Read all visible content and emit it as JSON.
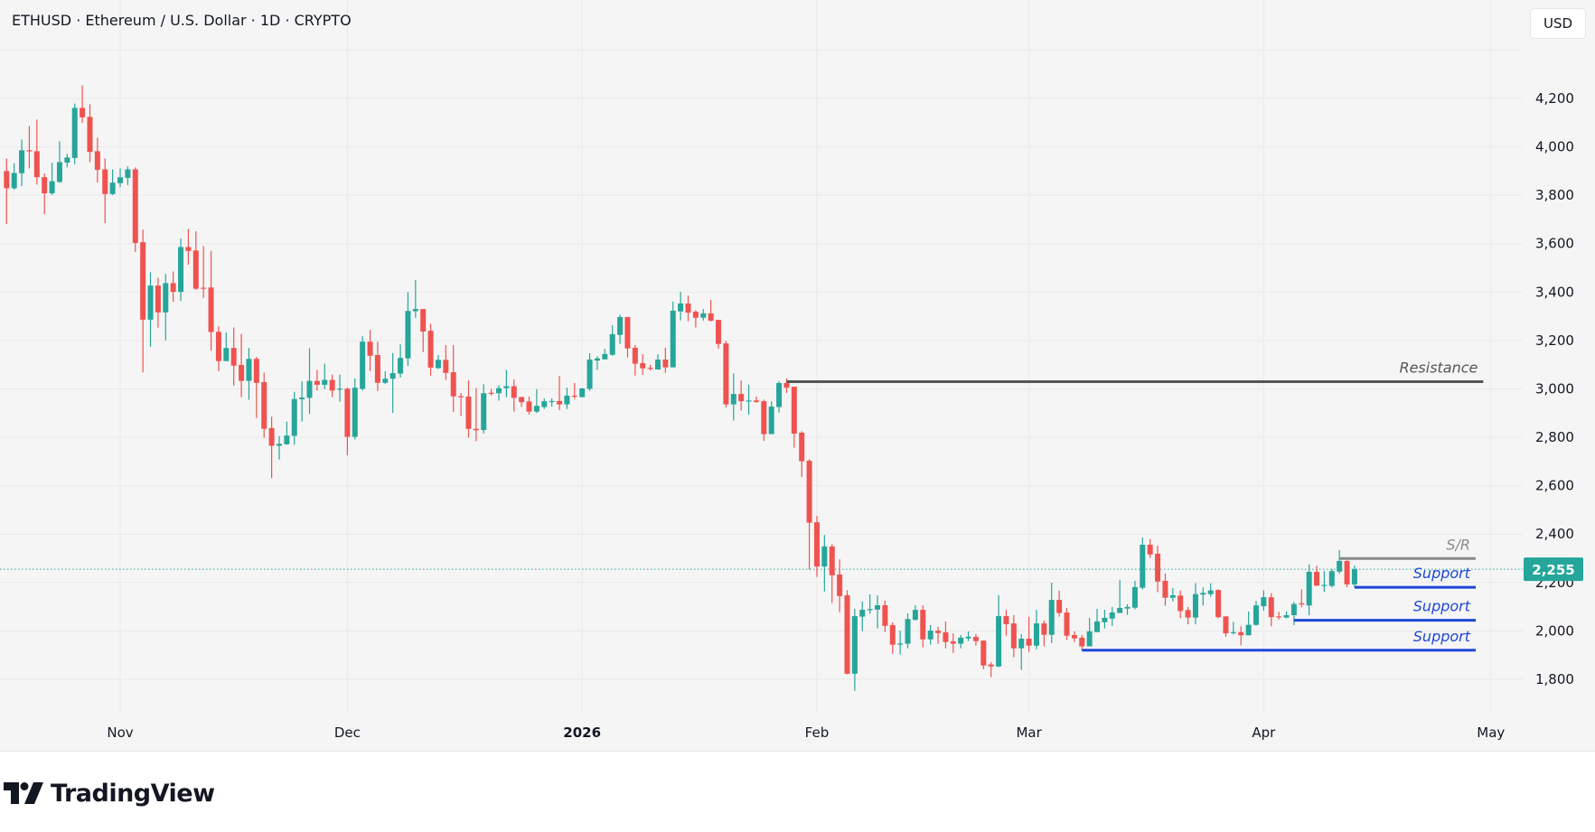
{
  "header": {
    "title": "ETHUSD · Ethereum / U.S. Dollar · 1D · CRYPTO",
    "currency_button": "USD"
  },
  "branding": {
    "logo_text": "TradingView"
  },
  "colors": {
    "up": "#26a69a",
    "down": "#ef5350",
    "background": "#f5f5f5",
    "grid": "#e9e9e9",
    "support": "#1f47d6",
    "resistance": "#555555",
    "sr": "#8a8a8a",
    "last_price": "#26a69a"
  },
  "chart_data": {
    "type": "candlestick",
    "symbol": "ETHUSD",
    "interval": "1D",
    "ylim": [
      1600,
      4400
    ],
    "grid": true,
    "y_ticks": [
      {
        "value": 4200,
        "label": "4,200"
      },
      {
        "value": 4000,
        "label": "4,000"
      },
      {
        "value": 3800,
        "label": "3,800"
      },
      {
        "value": 3600,
        "label": "3,600"
      },
      {
        "value": 3400,
        "label": "3,400"
      },
      {
        "value": 3200,
        "label": "3,200"
      },
      {
        "value": 3000,
        "label": "3,000"
      },
      {
        "value": 2800,
        "label": "2,800"
      },
      {
        "value": 2600,
        "label": "2,600"
      },
      {
        "value": 2400,
        "label": "2,400"
      },
      {
        "value": 2200,
        "label": "2,200"
      },
      {
        "value": 2000,
        "label": "2,000"
      },
      {
        "value": 1800,
        "label": "1,800"
      }
    ],
    "x_ticks": [
      {
        "date": "2025-11-01",
        "label": "Nov",
        "bold": false
      },
      {
        "date": "2025-12-01",
        "label": "Dec",
        "bold": false
      },
      {
        "date": "2026-01-01",
        "label": "2026",
        "bold": true
      },
      {
        "date": "2026-02-01",
        "label": "Feb",
        "bold": false
      },
      {
        "date": "2026-03-01",
        "label": "Mar",
        "bold": false
      },
      {
        "date": "2026-04-01",
        "label": "Apr",
        "bold": false
      },
      {
        "date": "2026-05-01",
        "label": "May",
        "bold": false
      }
    ],
    "last_price": {
      "value": 2255,
      "label": "2,255"
    },
    "drawings": [
      {
        "label": "Resistance",
        "price": 3030,
        "from": "2026-01-28",
        "to": "2026-04-30",
        "kind": "resistance"
      },
      {
        "label": "S/R",
        "price": 2299,
        "from": "2026-04-11",
        "to": "2026-04-29",
        "kind": "sr"
      },
      {
        "label": "Support",
        "price": 2180,
        "from": "2026-04-13",
        "to": "2026-04-29",
        "kind": "support"
      },
      {
        "label": "Support",
        "price": 2044,
        "from": "2026-04-05",
        "to": "2026-04-29",
        "kind": "support"
      },
      {
        "label": "Support",
        "price": 1920,
        "from": "2026-03-08",
        "to": "2026-04-29",
        "kind": "support"
      }
    ],
    "candle_fields": [
      "date",
      "open",
      "high",
      "low",
      "close"
    ],
    "candles": [
      [
        "2025-10-17",
        3900,
        3952,
        3681,
        3829
      ],
      [
        "2025-10-18",
        3829,
        3932,
        3823,
        3892
      ],
      [
        "2025-10-19",
        3891,
        4030,
        3838,
        3986
      ],
      [
        "2025-10-20",
        3986,
        4086,
        3911,
        3984
      ],
      [
        "2025-10-21",
        3982,
        4113,
        3844,
        3875
      ],
      [
        "2025-10-22",
        3875,
        3890,
        3722,
        3808
      ],
      [
        "2025-10-23",
        3808,
        3934,
        3801,
        3858
      ],
      [
        "2025-10-24",
        3855,
        4023,
        3852,
        3937
      ],
      [
        "2025-10-25",
        3935,
        3971,
        3915,
        3956
      ],
      [
        "2025-10-26",
        3954,
        4179,
        3928,
        4161
      ],
      [
        "2025-10-27",
        4161,
        4254,
        4099,
        4122
      ],
      [
        "2025-10-28",
        4124,
        4176,
        3937,
        3979
      ],
      [
        "2025-10-29",
        3982,
        4038,
        3853,
        3905
      ],
      [
        "2025-10-30",
        3907,
        3952,
        3685,
        3805
      ],
      [
        "2025-10-31",
        3805,
        3907,
        3801,
        3852
      ],
      [
        "2025-11-01",
        3850,
        3911,
        3833,
        3874
      ],
      [
        "2025-11-02",
        3872,
        3919,
        3842,
        3907
      ],
      [
        "2025-11-03",
        3907,
        3915,
        3566,
        3603
      ],
      [
        "2025-11-04",
        3606,
        3658,
        3068,
        3286
      ],
      [
        "2025-11-05",
        3286,
        3482,
        3174,
        3427
      ],
      [
        "2025-11-06",
        3427,
        3459,
        3253,
        3316
      ],
      [
        "2025-11-07",
        3316,
        3475,
        3200,
        3437
      ],
      [
        "2025-11-08",
        3437,
        3485,
        3360,
        3401
      ],
      [
        "2025-11-09",
        3401,
        3621,
        3363,
        3586
      ],
      [
        "2025-11-10",
        3586,
        3661,
        3513,
        3570
      ],
      [
        "2025-11-11",
        3572,
        3651,
        3409,
        3414
      ],
      [
        "2025-11-12",
        3418,
        3590,
        3376,
        3414
      ],
      [
        "2025-11-13",
        3419,
        3570,
        3158,
        3235
      ],
      [
        "2025-11-14",
        3236,
        3259,
        3073,
        3115
      ],
      [
        "2025-11-15",
        3115,
        3233,
        3115,
        3169
      ],
      [
        "2025-11-16",
        3169,
        3254,
        3013,
        3096
      ],
      [
        "2025-11-17",
        3099,
        3227,
        2965,
        3033
      ],
      [
        "2025-11-18",
        3033,
        3169,
        2955,
        3124
      ],
      [
        "2025-11-19",
        3124,
        3132,
        2880,
        3025
      ],
      [
        "2025-11-20",
        3028,
        3067,
        2798,
        2835
      ],
      [
        "2025-11-21",
        2838,
        2885,
        2631,
        2765
      ],
      [
        "2025-11-22",
        2765,
        2805,
        2708,
        2773
      ],
      [
        "2025-11-23",
        2771,
        2865,
        2769,
        2807
      ],
      [
        "2025-11-24",
        2806,
        2988,
        2769,
        2958
      ],
      [
        "2025-11-25",
        2957,
        3031,
        2865,
        2964
      ],
      [
        "2025-11-26",
        2963,
        3168,
        2896,
        3033
      ],
      [
        "2025-11-27",
        3033,
        3078,
        2993,
        3017
      ],
      [
        "2025-11-28",
        3017,
        3104,
        2999,
        3037
      ],
      [
        "2025-11-29",
        3037,
        3059,
        2966,
        2993
      ],
      [
        "2025-11-30",
        2999,
        3059,
        2947,
        3001
      ],
      [
        "2025-12-01",
        3001,
        3005,
        2726,
        2802
      ],
      [
        "2025-12-02",
        2802,
        3043,
        2791,
        3005
      ],
      [
        "2025-12-03",
        3000,
        3218,
        2993,
        3195
      ],
      [
        "2025-12-04",
        3195,
        3244,
        3074,
        3137
      ],
      [
        "2025-12-05",
        3140,
        3195,
        2991,
        3025
      ],
      [
        "2025-12-06",
        3025,
        3073,
        3020,
        3042
      ],
      [
        "2025-12-07",
        3042,
        3148,
        2901,
        3065
      ],
      [
        "2025-12-08",
        3063,
        3184,
        3047,
        3128
      ],
      [
        "2025-12-09",
        3126,
        3400,
        3095,
        3322
      ],
      [
        "2025-12-10",
        3321,
        3450,
        3294,
        3330
      ],
      [
        "2025-12-11",
        3330,
        3330,
        3152,
        3237
      ],
      [
        "2025-12-12",
        3240,
        3269,
        3055,
        3088
      ],
      [
        "2025-12-13",
        3086,
        3139,
        3082,
        3120
      ],
      [
        "2025-12-14",
        3120,
        3181,
        3037,
        3066
      ],
      [
        "2025-12-15",
        3069,
        3181,
        2905,
        2969
      ],
      [
        "2025-12-16",
        2970,
        2983,
        2888,
        2968
      ],
      [
        "2025-12-17",
        2968,
        3035,
        2799,
        2835
      ],
      [
        "2025-12-18",
        2835,
        3003,
        2784,
        2829
      ],
      [
        "2025-12-19",
        2830,
        3019,
        2816,
        2982
      ],
      [
        "2025-12-20",
        2984,
        3000,
        2973,
        2982
      ],
      [
        "2025-12-21",
        2982,
        3015,
        2951,
        3003
      ],
      [
        "2025-12-22",
        3003,
        3078,
        2966,
        3011
      ],
      [
        "2025-12-23",
        3011,
        3039,
        2906,
        2963
      ],
      [
        "2025-12-24",
        2966,
        2968,
        2926,
        2945
      ],
      [
        "2025-12-25",
        2948,
        2968,
        2894,
        2906
      ],
      [
        "2025-12-26",
        2906,
        2999,
        2900,
        2930
      ],
      [
        "2025-12-27",
        2925,
        2961,
        2917,
        2949
      ],
      [
        "2025-12-28",
        2949,
        2961,
        2927,
        2950
      ],
      [
        "2025-12-29",
        2950,
        3054,
        2912,
        2936
      ],
      [
        "2025-12-30",
        2936,
        3005,
        2917,
        2972
      ],
      [
        "2025-12-31",
        2972,
        3024,
        2958,
        2970
      ],
      [
        "2026-01-01",
        2966,
        3004,
        2965,
        3002
      ],
      [
        "2026-01-02",
        3000,
        3147,
        2992,
        3121
      ],
      [
        "2026-01-03",
        3117,
        3135,
        3078,
        3126
      ],
      [
        "2026-01-04",
        3122,
        3166,
        3122,
        3144
      ],
      [
        "2026-01-05",
        3141,
        3263,
        3137,
        3226
      ],
      [
        "2026-01-06",
        3223,
        3307,
        3186,
        3297
      ],
      [
        "2026-01-07",
        3297,
        3297,
        3130,
        3167
      ],
      [
        "2026-01-08",
        3170,
        3181,
        3055,
        3104
      ],
      [
        "2026-01-09",
        3106,
        3143,
        3058,
        3085
      ],
      [
        "2026-01-10",
        3087,
        3099,
        3076,
        3086
      ],
      [
        "2026-01-11",
        3080,
        3143,
        3080,
        3121
      ],
      [
        "2026-01-12",
        3121,
        3170,
        3066,
        3089
      ],
      [
        "2026-01-13",
        3089,
        3361,
        3089,
        3323
      ],
      [
        "2026-01-14",
        3320,
        3401,
        3283,
        3353
      ],
      [
        "2026-01-15",
        3353,
        3386,
        3279,
        3315
      ],
      [
        "2026-01-16",
        3319,
        3325,
        3253,
        3294
      ],
      [
        "2026-01-17",
        3294,
        3330,
        3282,
        3312
      ],
      [
        "2026-01-18",
        3312,
        3368,
        3278,
        3282
      ],
      [
        "2026-01-19",
        3285,
        3285,
        3166,
        3186
      ],
      [
        "2026-01-20",
        3188,
        3198,
        2923,
        2936
      ],
      [
        "2026-01-21",
        2936,
        3064,
        2869,
        2979
      ],
      [
        "2026-01-22",
        2979,
        3035,
        2910,
        2949
      ],
      [
        "2026-01-23",
        2949,
        3017,
        2893,
        2952
      ],
      [
        "2026-01-24",
        2952,
        2968,
        2942,
        2946
      ],
      [
        "2026-01-25",
        2949,
        2956,
        2785,
        2813
      ],
      [
        "2026-01-26",
        2813,
        2949,
        2813,
        2927
      ],
      [
        "2026-01-27",
        2925,
        3032,
        2902,
        3024
      ],
      [
        "2026-01-28",
        3024,
        3043,
        2983,
        3005
      ],
      [
        "2026-01-29",
        3009,
        3009,
        2757,
        2815
      ],
      [
        "2026-01-30",
        2819,
        2825,
        2636,
        2701
      ],
      [
        "2026-01-31",
        2703,
        2709,
        2253,
        2447
      ],
      [
        "2026-02-01",
        2449,
        2475,
        2223,
        2266
      ],
      [
        "2026-02-02",
        2266,
        2396,
        2163,
        2349
      ],
      [
        "2026-02-03",
        2349,
        2358,
        2115,
        2230
      ],
      [
        "2026-02-04",
        2233,
        2296,
        2077,
        2144
      ],
      [
        "2026-02-05",
        2147,
        2168,
        1820,
        1823
      ],
      [
        "2026-02-06",
        1823,
        2091,
        1752,
        2061
      ],
      [
        "2026-02-07",
        2059,
        2121,
        1999,
        2087
      ],
      [
        "2026-02-08",
        2087,
        2151,
        2071,
        2090
      ],
      [
        "2026-02-09",
        2088,
        2147,
        2010,
        2106
      ],
      [
        "2026-02-10",
        2106,
        2125,
        1995,
        2021
      ],
      [
        "2026-02-11",
        2024,
        2035,
        1905,
        1943
      ],
      [
        "2026-02-12",
        1943,
        2001,
        1902,
        1948
      ],
      [
        "2026-02-13",
        1947,
        2072,
        1928,
        2049
      ],
      [
        "2026-02-14",
        2046,
        2106,
        2042,
        2087
      ],
      [
        "2026-02-15",
        2087,
        2106,
        1932,
        1965
      ],
      [
        "2026-02-16",
        1965,
        2024,
        1943,
        2001
      ],
      [
        "2026-02-17",
        2001,
        2016,
        1947,
        1991
      ],
      [
        "2026-02-18",
        1994,
        2039,
        1928,
        1954
      ],
      [
        "2026-02-19",
        1957,
        1990,
        1909,
        1947
      ],
      [
        "2026-02-20",
        1947,
        1983,
        1928,
        1972
      ],
      [
        "2026-02-21",
        1969,
        1998,
        1958,
        1976
      ],
      [
        "2026-02-22",
        1975,
        1987,
        1939,
        1958
      ],
      [
        "2026-02-23",
        1960,
        1960,
        1842,
        1857
      ],
      [
        "2026-02-24",
        1861,
        1871,
        1809,
        1853
      ],
      [
        "2026-02-25",
        1853,
        2147,
        1850,
        2061
      ],
      [
        "2026-02-26",
        2061,
        2087,
        1980,
        2028
      ],
      [
        "2026-02-27",
        2031,
        2065,
        1891,
        1928
      ],
      [
        "2026-02-28",
        1928,
        1987,
        1839,
        1968
      ],
      [
        "2026-03-01",
        1968,
        2058,
        1913,
        1939
      ],
      [
        "2026-03-02",
        1939,
        2087,
        1924,
        2031
      ],
      [
        "2026-03-03",
        2031,
        2043,
        1936,
        1984
      ],
      [
        "2026-03-04",
        1984,
        2199,
        1950,
        2128
      ],
      [
        "2026-03-05",
        2128,
        2166,
        2059,
        2074
      ],
      [
        "2026-03-06",
        2076,
        2095,
        1962,
        1980
      ],
      [
        "2026-03-07",
        1983,
        1998,
        1954,
        1969
      ],
      [
        "2026-03-08",
        1972,
        1983,
        1921,
        1936
      ],
      [
        "2026-03-09",
        1936,
        2054,
        1936,
        1998
      ],
      [
        "2026-03-10",
        1995,
        2091,
        1995,
        2039
      ],
      [
        "2026-03-11",
        2036,
        2087,
        2010,
        2054
      ],
      [
        "2026-03-12",
        2051,
        2099,
        2021,
        2076
      ],
      [
        "2026-03-13",
        2074,
        2211,
        2074,
        2095
      ],
      [
        "2026-03-14",
        2092,
        2110,
        2066,
        2099
      ],
      [
        "2026-03-15",
        2096,
        2207,
        2089,
        2181
      ],
      [
        "2026-03-16",
        2178,
        2386,
        2171,
        2356
      ],
      [
        "2026-03-17",
        2356,
        2379,
        2301,
        2316
      ],
      [
        "2026-03-18",
        2319,
        2352,
        2160,
        2204
      ],
      [
        "2026-03-19",
        2207,
        2237,
        2104,
        2137
      ],
      [
        "2026-03-20",
        2137,
        2177,
        2122,
        2147
      ],
      [
        "2026-03-21",
        2146,
        2167,
        2052,
        2082
      ],
      [
        "2026-03-22",
        2086,
        2099,
        2027,
        2055
      ],
      [
        "2026-03-23",
        2055,
        2197,
        2027,
        2152
      ],
      [
        "2026-03-24",
        2150,
        2180,
        2105,
        2157
      ],
      [
        "2026-03-25",
        2152,
        2197,
        2141,
        2167
      ],
      [
        "2026-03-26",
        2169,
        2172,
        2052,
        2057
      ],
      [
        "2026-03-27",
        2060,
        2060,
        1976,
        1990
      ],
      [
        "2026-03-28",
        1993,
        2037,
        1985,
        1995
      ],
      [
        "2026-03-29",
        1995,
        2019,
        1940,
        1982
      ],
      [
        "2026-03-30",
        1982,
        2080,
        1982,
        2025
      ],
      [
        "2026-03-31",
        2025,
        2124,
        2022,
        2105
      ],
      [
        "2026-04-01",
        2102,
        2167,
        2084,
        2139
      ],
      [
        "2026-04-02",
        2139,
        2156,
        2019,
        2057
      ],
      [
        "2026-04-03",
        2060,
        2079,
        2047,
        2057
      ],
      [
        "2026-04-04",
        2055,
        2081,
        2052,
        2065
      ],
      [
        "2026-04-05",
        2065,
        2120,
        2024,
        2111
      ],
      [
        "2026-04-06",
        2114,
        2172,
        2097,
        2111
      ],
      [
        "2026-04-07",
        2105,
        2275,
        2065,
        2244
      ],
      [
        "2026-04-08",
        2244,
        2269,
        2185,
        2187
      ],
      [
        "2026-04-09",
        2187,
        2247,
        2161,
        2190
      ],
      [
        "2026-04-10",
        2186,
        2256,
        2180,
        2247
      ],
      [
        "2026-04-11",
        2245,
        2334,
        2236,
        2289
      ],
      [
        "2026-04-12",
        2289,
        2292,
        2180,
        2192
      ],
      [
        "2026-04-13",
        2192,
        2270,
        2180,
        2255
      ]
    ]
  }
}
